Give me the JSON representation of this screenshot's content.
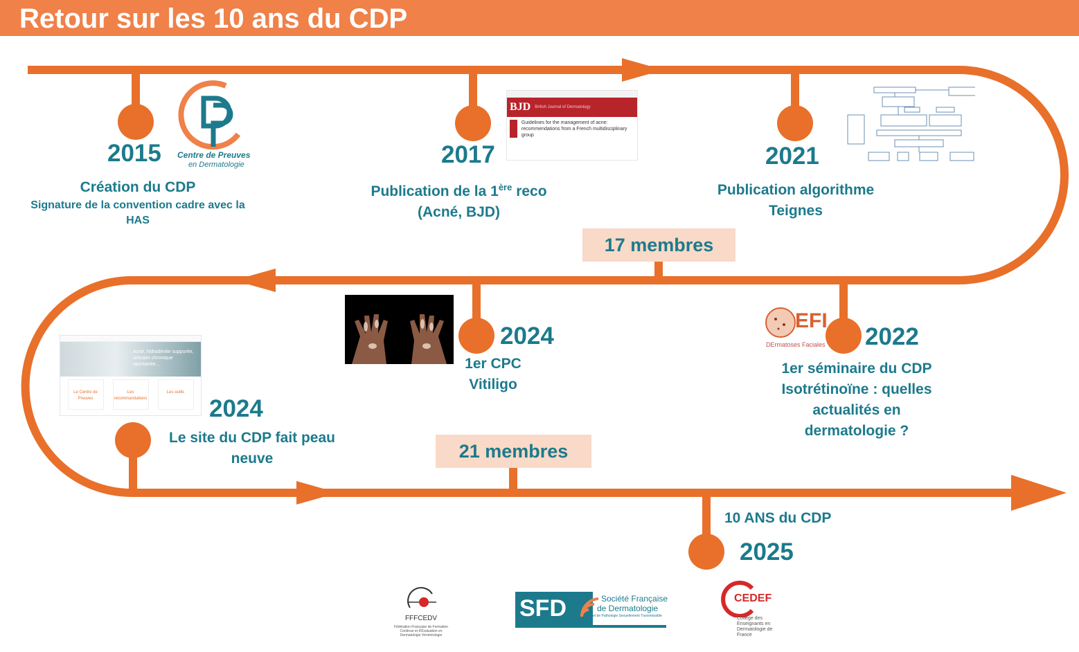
{
  "header": {
    "title": "Retour sur les 10 ans du CDP"
  },
  "colors": {
    "accent": "#ef8149",
    "line": "#e8702a",
    "text": "#1c7a8c",
    "badge_bg": "#f9d9c7"
  },
  "events": [
    {
      "year": "2015",
      "title": "Création du CDP",
      "subtitle": "Signature de la convention cadre avec la HAS"
    },
    {
      "year": "2017",
      "title_prefix": "Publication de la 1",
      "title_sup": "ère",
      "title_suffix": " reco",
      "line2": "(Acné, BJD)"
    },
    {
      "year": "2021",
      "line1": "Publication algorithme",
      "line2": "Teignes"
    },
    {
      "year": "2022",
      "line1": "1er séminaire du CDP",
      "line2": "Isotrétinoïne : quelles",
      "line3": "actualités en",
      "line4": "dermatologie ?"
    },
    {
      "year": "2024",
      "line1": "1er CPC",
      "line2": "Vitiligo"
    },
    {
      "year": "2024",
      "line1": "Le site du CDP fait peau",
      "line2": "neuve"
    },
    {
      "year": "2025",
      "line1": "10 ANS du CDP"
    }
  ],
  "badges": {
    "first": "17 membres",
    "second": "21 membres"
  },
  "logos": {
    "cdp_line1": "Centre de Preuves",
    "cdp_line2": "en Dermatologie",
    "defi_word": "EFI",
    "defi_sub": "DErmatoses Faciales",
    "fffcedv_name": "FFFCEDV",
    "fffcedv_sub": "Fédération Française de Formation Continue et d'Évaluation en Dermatologie Vénéréologie",
    "sfd_abbr": "SFD",
    "sfd_line1": "Société Française",
    "sfd_line2": "de Dermatologie",
    "sfd_line3": "et de Pathologie Sexuellement Transmissible",
    "cedef_abbr": "CEDEF",
    "cedef_sub": "Collège des Enseignants en Dermatologie de France"
  },
  "thumbnails": {
    "bjd_brand": "BJD",
    "bjd_journal": "British Journal of Dermatology",
    "bjd_article": "Guidelines for the management of acne: recommendations from a French multidisciplinary group",
    "site_headline": "Acné, hidradénite suppurée, urticaire chronique spontanée...",
    "site_card1": "Le Centre de Preuves",
    "site_card2": "Les recommandations",
    "site_card3": "Les outils"
  }
}
